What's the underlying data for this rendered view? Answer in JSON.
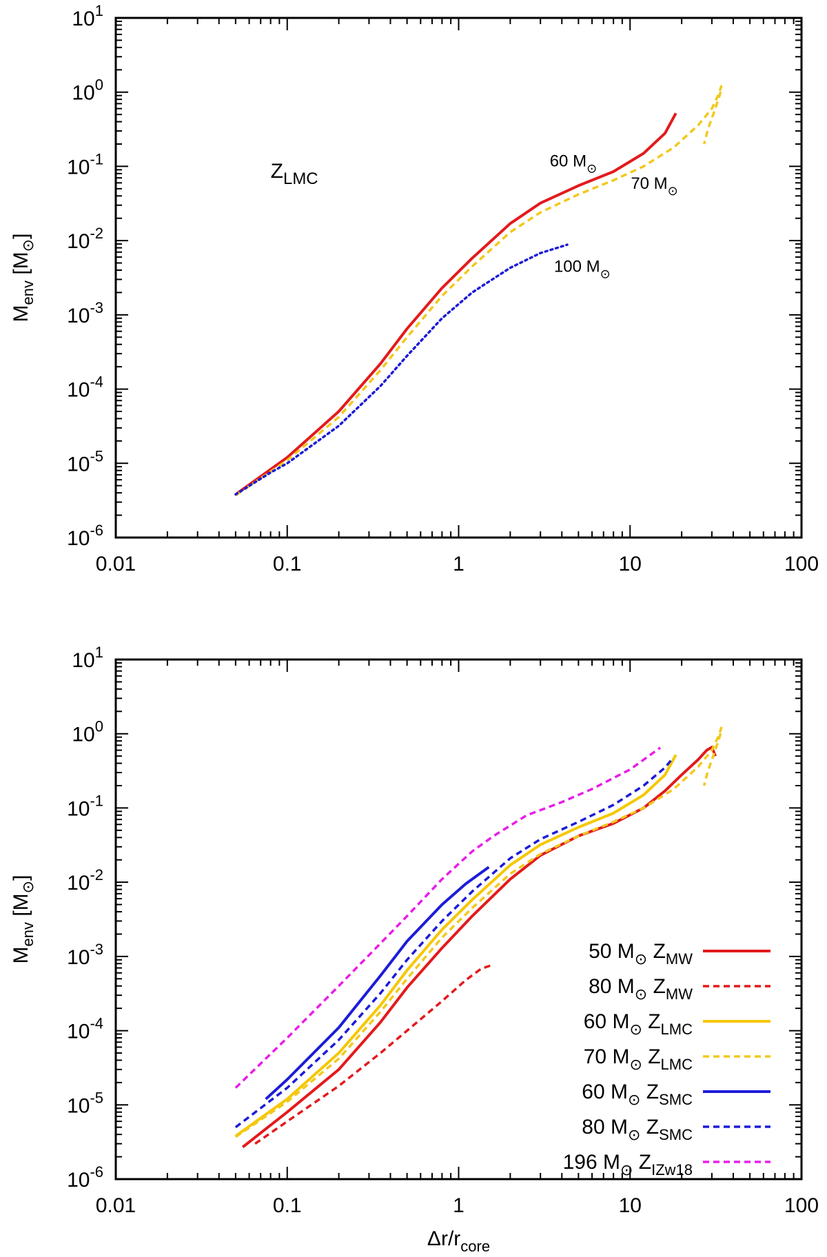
{
  "chart_data": [
    {
      "type": "line",
      "panel": "top",
      "xscale": "log",
      "yscale": "log",
      "xlim": [
        0.01,
        100
      ],
      "ylim": [
        1e-06,
        10
      ],
      "xlabel": "",
      "ylabel": {
        "main": "M",
        "sub": "env",
        "unit": "[M",
        "unit_sub": "⊙",
        "unit_close": "]"
      },
      "xticks": [
        {
          "v": 0.01,
          "label": "0.01"
        },
        {
          "v": 0.1,
          "label": "0.1"
        },
        {
          "v": 1,
          "label": "1"
        },
        {
          "v": 10,
          "label": "10"
        },
        {
          "v": 100,
          "label": "100"
        }
      ],
      "yticks": [
        {
          "v": 1e-06,
          "base": "10",
          "exp": "-6"
        },
        {
          "v": 1e-05,
          "base": "10",
          "exp": "-5"
        },
        {
          "v": 0.0001,
          "base": "10",
          "exp": "-4"
        },
        {
          "v": 0.001,
          "base": "10",
          "exp": "-3"
        },
        {
          "v": 0.01,
          "base": "10",
          "exp": "-2"
        },
        {
          "v": 0.1,
          "base": "10",
          "exp": "-1"
        },
        {
          "v": 1,
          "base": "10",
          "exp": "0"
        },
        {
          "v": 10,
          "base": "10",
          "exp": "1"
        }
      ],
      "panel_label": {
        "main": "Z",
        "sub": "LMC"
      },
      "series": [
        {
          "name": "60 M⊙",
          "color": "#e31a1c",
          "dash": "solid",
          "x": [
            0.05,
            0.1,
            0.2,
            0.35,
            0.5,
            0.8,
            1.2,
            2,
            3,
            5,
            8,
            12,
            16,
            18.5
          ],
          "y": [
            3.8e-06,
            1.2e-05,
            5e-05,
            0.00022,
            0.00065,
            0.0023,
            0.0058,
            0.017,
            0.032,
            0.055,
            0.085,
            0.15,
            0.28,
            0.52
          ]
        },
        {
          "name": "70 M⊙",
          "color": "#f2c81e",
          "dash": "dashed",
          "x": [
            0.05,
            0.1,
            0.2,
            0.35,
            0.5,
            0.8,
            1.2,
            2,
            3,
            5,
            8,
            12,
            18,
            25,
            30,
            33,
            34,
            33.5,
            31,
            28.5,
            27
          ],
          "y": [
            3.7e-06,
            1.1e-05,
            4.2e-05,
            0.00018,
            0.0005,
            0.0018,
            0.0045,
            0.013,
            0.024,
            0.042,
            0.065,
            0.1,
            0.18,
            0.36,
            0.6,
            0.95,
            1.2,
            0.95,
            0.55,
            0.32,
            0.2
          ]
        },
        {
          "name": "100 M⊙",
          "color": "#1c1cd8",
          "dash": "dotted",
          "x": [
            0.05,
            0.08,
            0.1,
            0.2,
            0.35,
            0.5,
            0.8,
            1.2,
            2,
            3,
            4.3
          ],
          "y": [
            3.8e-06,
            7.5e-06,
            1e-05,
            3.2e-05,
            0.00011,
            0.00028,
            0.0009,
            0.002,
            0.0043,
            0.0068,
            0.0088
          ]
        }
      ],
      "annotations": [
        {
          "text": "60 M",
          "sym": "⊙",
          "x": 3.4,
          "y": 0.1
        },
        {
          "text": "70 M",
          "sym": "⊙",
          "x": 10.1,
          "y": 0.05
        },
        {
          "text": "100 M",
          "sym": "⊙",
          "x": 3.6,
          "y": 0.0038
        }
      ]
    },
    {
      "type": "line",
      "panel": "bottom",
      "xscale": "log",
      "yscale": "log",
      "xlim": [
        0.01,
        100
      ],
      "ylim": [
        1e-06,
        10
      ],
      "xlabel": {
        "main": "Δr/r",
        "sub": "core"
      },
      "ylabel": {
        "main": "M",
        "sub": "env",
        "unit": "[M",
        "unit_sub": "⊙",
        "unit_close": "]"
      },
      "xticks": [
        {
          "v": 0.01,
          "label": "0.01"
        },
        {
          "v": 0.1,
          "label": "0.1"
        },
        {
          "v": 1,
          "label": "1"
        },
        {
          "v": 10,
          "label": "10"
        },
        {
          "v": 100,
          "label": "100"
        }
      ],
      "yticks": [
        {
          "v": 1e-06,
          "base": "10",
          "exp": "-6"
        },
        {
          "v": 1e-05,
          "base": "10",
          "exp": "-5"
        },
        {
          "v": 0.0001,
          "base": "10",
          "exp": "-4"
        },
        {
          "v": 0.001,
          "base": "10",
          "exp": "-3"
        },
        {
          "v": 0.01,
          "base": "10",
          "exp": "-2"
        },
        {
          "v": 0.1,
          "base": "10",
          "exp": "-1"
        },
        {
          "v": 1,
          "base": "10",
          "exp": "0"
        },
        {
          "v": 10,
          "base": "10",
          "exp": "1"
        }
      ],
      "legend_position": "bottom-right",
      "series": [
        {
          "name": "50 M⊙ ZMW",
          "label": "50 M",
          "zsub": "MW",
          "color": "#e31a1c",
          "dash": "solid",
          "x": [
            0.055,
            0.1,
            0.2,
            0.35,
            0.5,
            0.8,
            1.2,
            2,
            3,
            5,
            8,
            12,
            16,
            20,
            25,
            28,
            30,
            31.5
          ],
          "y": [
            2.7e-06,
            8e-06,
            3e-05,
            0.00013,
            0.00038,
            0.0013,
            0.0035,
            0.011,
            0.023,
            0.042,
            0.062,
            0.1,
            0.17,
            0.28,
            0.45,
            0.6,
            0.66,
            0.5
          ]
        },
        {
          "name": "80 M⊙ ZMW",
          "label": "80 M",
          "zsub": "MW",
          "color": "#e31a1c",
          "dash": "dashed",
          "x": [
            0.065,
            0.1,
            0.2,
            0.35,
            0.5,
            0.8,
            1.1,
            1.35,
            1.55
          ],
          "y": [
            3e-06,
            6e-06,
            1.8e-05,
            5e-05,
            0.0001,
            0.00025,
            0.00048,
            0.00068,
            0.00076
          ]
        },
        {
          "name": "60 M⊙ ZLMC",
          "label": "60 M",
          "zsub": "LMC",
          "color": "#f5c800",
          "dash": "solid",
          "x": [
            0.05,
            0.1,
            0.2,
            0.35,
            0.5,
            0.8,
            1.2,
            2,
            3,
            5,
            8,
            12,
            16,
            18.5
          ],
          "y": [
            3.8e-06,
            1.2e-05,
            5e-05,
            0.00022,
            0.00065,
            0.0023,
            0.0058,
            0.017,
            0.032,
            0.055,
            0.085,
            0.15,
            0.28,
            0.52
          ]
        },
        {
          "name": "70 M⊙ ZLMC",
          "label": "70 M",
          "zsub": "LMC",
          "color": "#f2c81e",
          "dash": "dashed",
          "x": [
            0.05,
            0.1,
            0.2,
            0.35,
            0.5,
            0.8,
            1.2,
            2,
            3,
            5,
            8,
            12,
            18,
            25,
            30,
            33,
            34,
            33.5,
            31,
            28.5,
            27
          ],
          "y": [
            3.7e-06,
            1.1e-05,
            4.2e-05,
            0.00018,
            0.0005,
            0.0018,
            0.0045,
            0.013,
            0.024,
            0.042,
            0.065,
            0.1,
            0.18,
            0.36,
            0.6,
            0.95,
            1.2,
            0.95,
            0.55,
            0.32,
            0.2
          ]
        },
        {
          "name": "60 M⊙ ZSMC",
          "label": "60 M",
          "zsub": "SMC",
          "color": "#1c1cd8",
          "dash": "solid",
          "x": [
            0.075,
            0.1,
            0.2,
            0.35,
            0.5,
            0.8,
            1.1,
            1.5
          ],
          "y": [
            1.2e-05,
            2.2e-05,
            0.00011,
            0.00055,
            0.0016,
            0.005,
            0.0095,
            0.016
          ]
        },
        {
          "name": "80 M⊙ ZSMC",
          "label": "80 M",
          "zsub": "SMC",
          "color": "#1c1cd8",
          "dash": "dashed",
          "x": [
            0.05,
            0.1,
            0.2,
            0.35,
            0.5,
            0.8,
            1.2,
            2,
            3,
            5,
            8,
            12,
            16,
            17.5
          ],
          "y": [
            5e-06,
            1.7e-05,
            7.5e-05,
            0.00032,
            0.0009,
            0.003,
            0.0075,
            0.021,
            0.038,
            0.065,
            0.11,
            0.2,
            0.35,
            0.45
          ]
        },
        {
          "name": "196 M⊙ ZIZw18",
          "label": "196 M",
          "zsub": "IZw18",
          "color": "#e81ee8",
          "dash": "dashed",
          "x": [
            0.05,
            0.1,
            0.2,
            0.35,
            0.5,
            0.8,
            1.2,
            1.6,
            2.5,
            4,
            6,
            10,
            15
          ],
          "y": [
            1.7e-05,
            8e-05,
            0.0004,
            0.0015,
            0.0035,
            0.011,
            0.026,
            0.042,
            0.08,
            0.12,
            0.18,
            0.33,
            0.65
          ]
        }
      ]
    }
  ]
}
